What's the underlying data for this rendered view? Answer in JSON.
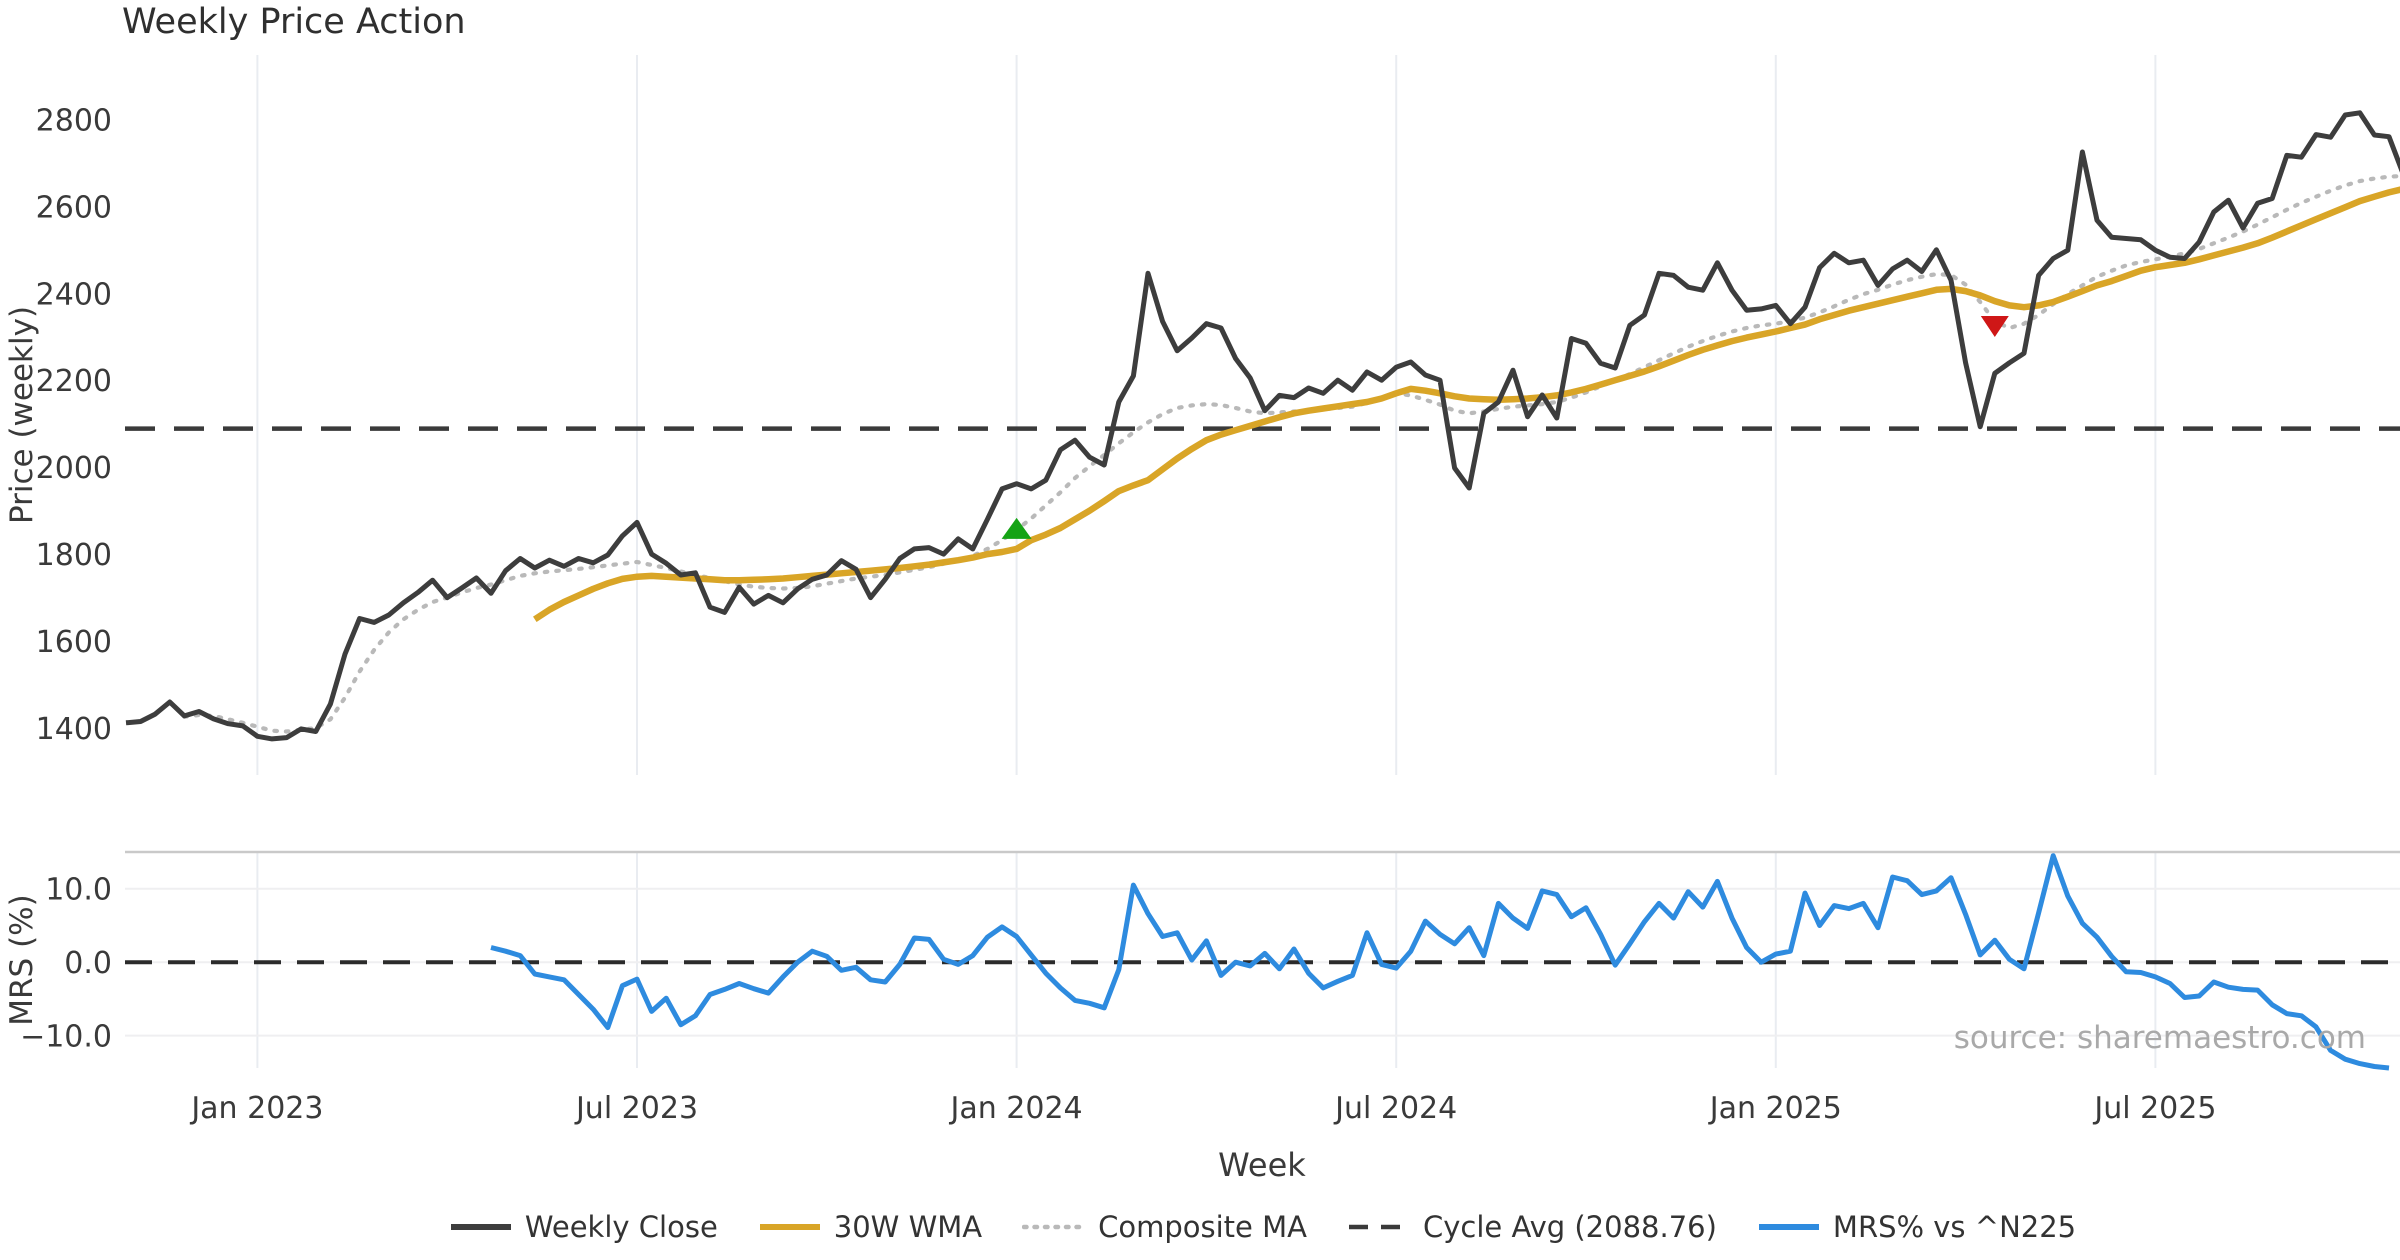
{
  "chart_data": {
    "type": "line",
    "title": "Weekly Price Action",
    "xlabel": "Week",
    "source": "source: sharemaestro.com",
    "legend_position": "bottom-center",
    "grid": "vertical gridlines both panels; horizontal gridlines lower panel only",
    "price_panel": {
      "ylabel": "Price (weekly)",
      "ylim": [
        1292,
        2948
      ],
      "yticks": [
        1400,
        1600,
        1800,
        2000,
        2200,
        2400,
        2600,
        2800
      ],
      "ytick_labels": [
        "1400",
        "1600",
        "1800",
        "2000",
        "2200",
        "2400",
        "2600",
        "2800"
      ],
      "cycle_avg": 2088.76
    },
    "mrs_panel": {
      "ylabel": "MRS (%)",
      "ylim": [
        -14.4,
        15.0
      ],
      "yticks": [
        -10,
        0,
        10
      ],
      "ytick_labels": [
        "−10.0",
        "0.0",
        "10.0"
      ],
      "zero_line": 0
    },
    "weeks_total": 157,
    "x_ticks": [
      {
        "index": 9,
        "label": "Jan 2023"
      },
      {
        "index": 35,
        "label": "Jul 2023"
      },
      {
        "index": 61,
        "label": "Jan 2024"
      },
      {
        "index": 87,
        "label": "Jul 2024"
      },
      {
        "index": 113,
        "label": "Jan 2025"
      },
      {
        "index": 139,
        "label": "Jul 2025"
      }
    ],
    "colors": {
      "close": "#3d3d3d",
      "wma30": "#d9a527",
      "composite": "#b9b9b9",
      "cycle": "#3a3a3a",
      "mrs": "#2e8bdf",
      "buy_marker": "#15a315",
      "sell_marker": "#cf1717"
    },
    "series": [
      {
        "name": "Weekly Close",
        "panel": "price",
        "style": "solid",
        "color": "#3d3d3d",
        "values": [
          1412,
          1415,
          1432,
          1460,
          1428,
          1438,
          1421,
          1410,
          1405,
          1381,
          1375,
          1378,
          1398,
          1392,
          1455,
          1570,
          1652,
          1643,
          1660,
          1688,
          1712,
          1740,
          1700,
          1722,
          1745,
          1710,
          1762,
          1790,
          1768,
          1786,
          1772,
          1790,
          1780,
          1798,
          1842,
          1873,
          1800,
          1779,
          1752,
          1757,
          1678,
          1666,
          1724,
          1685,
          1705,
          1688,
          1720,
          1742,
          1752,
          1785,
          1765,
          1700,
          1742,
          1790,
          1812,
          1815,
          1800,
          1835,
          1812,
          1880,
          1950,
          1962,
          1950,
          1970,
          2040,
          2062,
          2023,
          2005,
          2150,
          2210,
          2446,
          2335,
          2268,
          2297,
          2330,
          2320,
          2250,
          2205,
          2130,
          2165,
          2160,
          2182,
          2170,
          2200,
          2177,
          2219,
          2200,
          2230,
          2242,
          2212,
          2200,
          1998,
          1952,
          2124,
          2150,
          2223,
          2116,
          2166,
          2113,
          2296,
          2285,
          2239,
          2228,
          2326,
          2350,
          2446,
          2441,
          2414,
          2407,
          2470,
          2407,
          2361,
          2364,
          2372,
          2330,
          2368,
          2459,
          2492,
          2470,
          2476,
          2418,
          2456,
          2476,
          2450,
          2500,
          2430,
          2240,
          2093,
          2216,
          2240,
          2262,
          2441,
          2480,
          2499,
          2725,
          2568,
          2529,
          2526,
          2523,
          2499,
          2483,
          2480,
          2518,
          2587,
          2614,
          2550,
          2607,
          2618,
          2717,
          2713,
          2765,
          2759,
          2810,
          2815,
          2764,
          2760,
          2672
        ]
      },
      {
        "name": "30W WMA",
        "panel": "price",
        "style": "solid",
        "color": "#d9a527",
        "values": [
          null,
          null,
          null,
          null,
          null,
          null,
          null,
          null,
          null,
          null,
          null,
          null,
          null,
          null,
          null,
          null,
          null,
          null,
          null,
          null,
          null,
          null,
          null,
          null,
          null,
          null,
          null,
          null,
          1650,
          1672,
          1690,
          1705,
          1720,
          1733,
          1743,
          1748,
          1750,
          1748,
          1746,
          1744,
          1742,
          1740,
          1740,
          1741,
          1742,
          1744,
          1747,
          1750,
          1753,
          1756,
          1759,
          1762,
          1765,
          1768,
          1772,
          1776,
          1781,
          1786,
          1792,
          1800,
          1805,
          1812,
          1832,
          1845,
          1860,
          1880,
          1900,
          1922,
          1945,
          1958,
          1970,
          1995,
          2020,
          2042,
          2062,
          2075,
          2085,
          2095,
          2105,
          2115,
          2124,
          2130,
          2135,
          2140,
          2145,
          2150,
          2158,
          2170,
          2180,
          2176,
          2170,
          2163,
          2158,
          2156,
          2155,
          2156,
          2158,
          2161,
          2165,
          2172,
          2180,
          2190,
          2200,
          2210,
          2220,
          2232,
          2245,
          2258,
          2270,
          2280,
          2290,
          2298,
          2305,
          2312,
          2320,
          2328,
          2340,
          2350,
          2360,
          2368,
          2376,
          2384,
          2392,
          2400,
          2408,
          2410,
          2405,
          2395,
          2382,
          2372,
          2368,
          2372,
          2380,
          2392,
          2405,
          2418,
          2428,
          2440,
          2452,
          2460,
          2465,
          2470,
          2478,
          2487,
          2496,
          2505,
          2515,
          2528,
          2542,
          2556,
          2570,
          2584,
          2598,
          2612,
          2622,
          2632,
          2640
        ]
      },
      {
        "name": "Composite MA",
        "panel": "price",
        "style": "dotted",
        "color": "#b9b9b9",
        "values": [
          null,
          null,
          null,
          null,
          1426,
          1430,
          1428,
          1420,
          1412,
          1403,
          1394,
          1392,
          1396,
          1400,
          1420,
          1470,
          1530,
          1580,
          1620,
          1650,
          1672,
          1690,
          1700,
          1712,
          1722,
          1730,
          1740,
          1750,
          1756,
          1760,
          1763,
          1766,
          1770,
          1774,
          1778,
          1782,
          1775,
          1768,
          1760,
          1752,
          1745,
          1738,
          1730,
          1725,
          1722,
          1721,
          1722,
          1726,
          1732,
          1738,
          1744,
          1748,
          1752,
          1758,
          1764,
          1770,
          1778,
          1786,
          1796,
          1812,
          1832,
          1856,
          1882,
          1912,
          1942,
          1975,
          2002,
          2028,
          2055,
          2080,
          2103,
          2122,
          2136,
          2142,
          2145,
          2143,
          2136,
          2128,
          2124,
          2126,
          2128,
          2130,
          2133,
          2136,
          2139,
          2148,
          2160,
          2170,
          2165,
          2155,
          2144,
          2130,
          2124,
          2128,
          2134,
          2139,
          2142,
          2145,
          2150,
          2160,
          2172,
          2186,
          2200,
          2214,
          2230,
          2246,
          2262,
          2277,
          2290,
          2302,
          2312,
          2320,
          2326,
          2330,
          2336,
          2344,
          2356,
          2370,
          2385,
          2398,
          2408,
          2420,
          2430,
          2438,
          2444,
          2442,
          2420,
          2380,
          2335,
          2320,
          2330,
          2350,
          2375,
          2398,
          2418,
          2438,
          2452,
          2464,
          2472,
          2478,
          2484,
          2492,
          2502,
          2515,
          2528,
          2542,
          2558,
          2575,
          2592,
          2608,
          2622,
          2636,
          2648,
          2658,
          2664,
          2668,
          2670
        ]
      },
      {
        "name": "Cycle Avg (2088.76)",
        "panel": "price",
        "style": "dashed",
        "color": "#3a3a3a",
        "hline": 2088.76
      },
      {
        "name": "MRS% vs ^N225",
        "panel": "mrs",
        "style": "solid",
        "color": "#2e8bdf",
        "values": [
          null,
          null,
          null,
          null,
          null,
          null,
          null,
          null,
          null,
          null,
          null,
          null,
          null,
          null,
          null,
          null,
          null,
          null,
          null,
          null,
          null,
          null,
          null,
          null,
          null,
          2.0,
          1.5,
          0.9,
          -1.6,
          -2.0,
          -2.4,
          -4.4,
          -6.4,
          -8.9,
          -3.2,
          -2.3,
          -6.7,
          -4.9,
          -8.5,
          -7.3,
          -4.4,
          -3.7,
          -2.9,
          -3.6,
          -4.2,
          -2.0,
          0.0,
          1.5,
          0.8,
          -1.1,
          -0.7,
          -2.4,
          -2.7,
          -0.3,
          3.3,
          3.1,
          0.4,
          -0.3,
          0.9,
          3.4,
          4.8,
          3.5,
          1.0,
          -1.5,
          -3.5,
          -5.2,
          -5.6,
          -6.2,
          -1.0,
          10.5,
          6.6,
          3.5,
          4.0,
          0.3,
          2.9,
          -1.8,
          0.0,
          -0.5,
          1.2,
          -0.9,
          1.8,
          -1.5,
          -3.5,
          -2.6,
          -1.8,
          4.0,
          -0.3,
          -0.8,
          1.5,
          5.6,
          3.8,
          2.5,
          4.7,
          0.9,
          8.0,
          6.0,
          4.6,
          9.7,
          9.2,
          6.2,
          7.4,
          3.8,
          -0.4,
          2.5,
          5.5,
          8.0,
          6.0,
          9.6,
          7.5,
          11.0,
          6.0,
          2.0,
          0.0,
          1.1,
          1.5,
          9.4,
          5.0,
          7.7,
          7.3,
          8.0,
          4.7,
          11.6,
          11.1,
          9.2,
          9.7,
          11.5,
          6.5,
          1.0,
          3.0,
          0.4,
          -0.9,
          6.7,
          14.5,
          9.0,
          5.3,
          3.4,
          0.8,
          -1.3,
          -1.4,
          -2.0,
          -2.9,
          -4.8,
          -4.6,
          -2.7,
          -3.4,
          -3.7,
          -3.8,
          -5.8,
          -7.0,
          -7.3,
          -8.8,
          -12.0,
          -13.2,
          -13.8,
          -14.2,
          -14.4,
          null
        ]
      }
    ],
    "markers": [
      {
        "name": "buy-signal",
        "shape": "triangle-up",
        "color": "#15a315",
        "index": 61,
        "value": 1858
      },
      {
        "name": "sell-signal",
        "shape": "triangle-down",
        "color": "#cf1717",
        "index": 128,
        "value": 2327
      }
    ],
    "legend": [
      {
        "label": "Weekly Close",
        "color": "#3d3d3d",
        "style": "solid"
      },
      {
        "label": "30W WMA",
        "color": "#d9a527",
        "style": "solid"
      },
      {
        "label": "Composite MA",
        "color": "#b9b9b9",
        "style": "dotted"
      },
      {
        "label": "Cycle Avg (2088.76)",
        "color": "#3a3a3a",
        "style": "dashed"
      },
      {
        "label": "MRS% vs ^N225",
        "color": "#2e8bdf",
        "style": "solid"
      }
    ]
  }
}
